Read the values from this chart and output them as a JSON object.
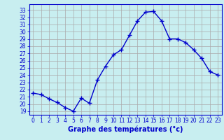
{
  "hours": [
    0,
    1,
    2,
    3,
    4,
    5,
    6,
    7,
    8,
    9,
    10,
    11,
    12,
    13,
    14,
    15,
    16,
    17,
    18,
    19,
    20,
    21,
    22,
    23
  ],
  "temps": [
    21.5,
    21.3,
    20.7,
    20.2,
    19.5,
    19.0,
    20.8,
    20.1,
    23.3,
    25.2,
    26.8,
    27.5,
    29.5,
    31.5,
    32.7,
    32.8,
    31.5,
    29.0,
    29.0,
    28.5,
    27.5,
    26.3,
    24.5,
    24.0
  ],
  "line_color": "#0000cc",
  "marker": "+",
  "marker_size": 4,
  "bg_color": "#c8eef0",
  "grid_color": "#aaaaaa",
  "xlabel": "Graphe des températures (°c)",
  "xlabel_color": "#0000cc",
  "ylim_min": 18.5,
  "ylim_max": 33.8,
  "xlim_min": -0.5,
  "xlim_max": 23.5,
  "yticks": [
    19,
    20,
    21,
    22,
    23,
    24,
    25,
    26,
    27,
    28,
    29,
    30,
    31,
    32,
    33
  ],
  "xticks": [
    0,
    1,
    2,
    3,
    4,
    5,
    6,
    7,
    8,
    9,
    10,
    11,
    12,
    13,
    14,
    15,
    16,
    17,
    18,
    19,
    20,
    21,
    22,
    23
  ],
  "tick_fontsize": 5.5,
  "label_fontsize": 7,
  "linewidth": 1.0,
  "markeredgewidth": 1.0
}
